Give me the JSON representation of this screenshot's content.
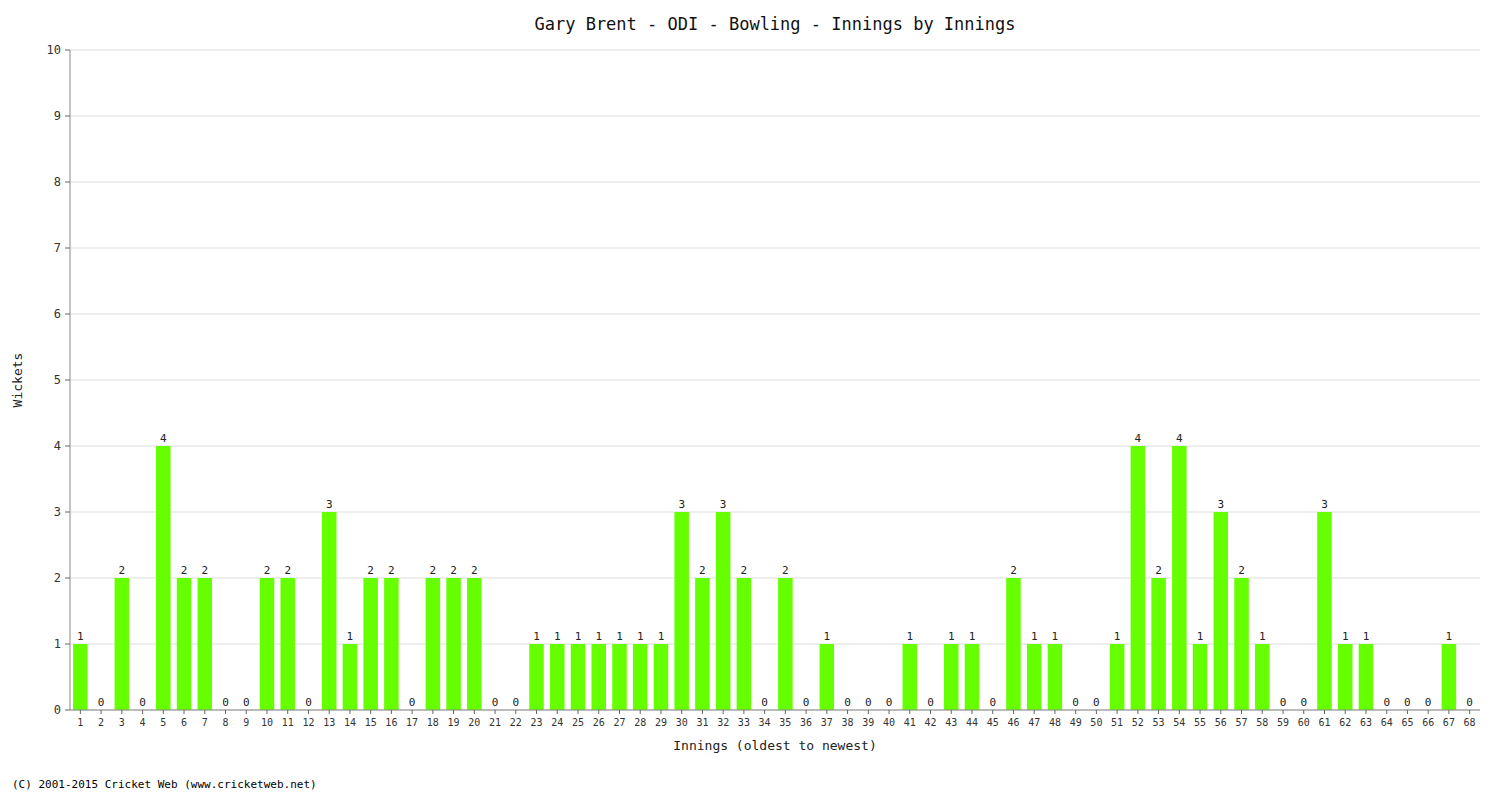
{
  "chart_data": {
    "type": "bar",
    "title": "Gary Brent - ODI - Bowling - Innings by Innings",
    "xlabel": "Innings (oldest to newest)",
    "ylabel": "Wickets",
    "footer": "(C) 2001-2015 Cricket Web (www.cricketweb.net)",
    "categories": [
      "1",
      "2",
      "3",
      "4",
      "5",
      "6",
      "7",
      "8",
      "9",
      "10",
      "11",
      "12",
      "13",
      "14",
      "15",
      "16",
      "17",
      "18",
      "19",
      "20",
      "21",
      "22",
      "23",
      "24",
      "25",
      "26",
      "27",
      "28",
      "29",
      "30",
      "31",
      "32",
      "33",
      "34",
      "35",
      "36",
      "37",
      "38",
      "39",
      "40",
      "41",
      "42",
      "43",
      "44",
      "45",
      "46",
      "47",
      "48",
      "49",
      "50",
      "51",
      "52",
      "53",
      "54",
      "55",
      "56",
      "57",
      "58",
      "59",
      "60",
      "61",
      "62",
      "63",
      "64",
      "65",
      "66",
      "67",
      "68"
    ],
    "values": [
      1,
      0,
      2,
      0,
      4,
      2,
      2,
      0,
      0,
      2,
      2,
      0,
      3,
      1,
      2,
      2,
      0,
      2,
      2,
      2,
      0,
      0,
      1,
      1,
      1,
      1,
      1,
      1,
      1,
      3,
      2,
      3,
      2,
      0,
      2,
      0,
      1,
      0,
      0,
      0,
      1,
      0,
      1,
      1,
      0,
      2,
      1,
      1,
      0,
      0,
      1,
      4,
      2,
      4,
      1,
      3,
      2,
      1,
      0,
      0,
      3,
      1,
      1,
      0,
      0,
      0,
      1,
      0
    ],
    "color": "#66ff00",
    "ylim": [
      0,
      10
    ],
    "yticks": [
      0,
      1,
      2,
      3,
      4,
      5,
      6,
      7,
      8,
      9,
      10
    ],
    "grid": true,
    "data_labels": true
  }
}
